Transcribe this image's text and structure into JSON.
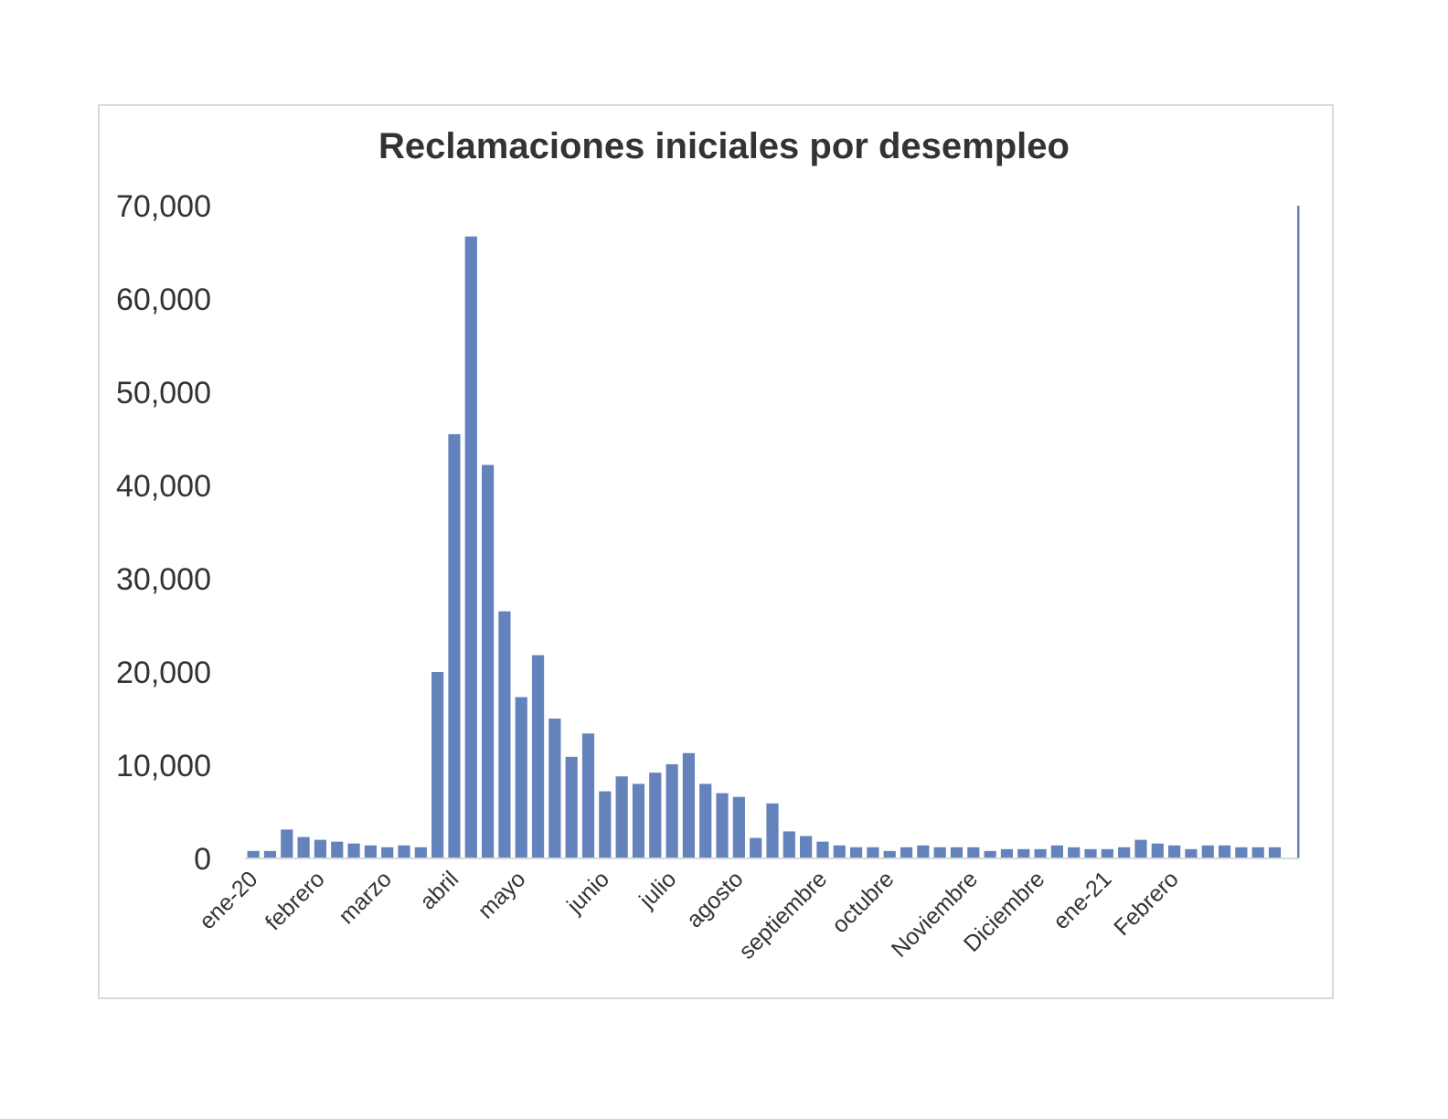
{
  "chart_data": {
    "type": "bar",
    "title": "Reclamaciones iniciales por desempleo",
    "xlabel": "",
    "ylabel": "",
    "ylim": [
      0,
      70000
    ],
    "yticks": [
      0,
      10000,
      20000,
      30000,
      40000,
      50000,
      60000,
      70000
    ],
    "ytick_labels": [
      "0",
      "10,000",
      "20,000",
      "30,000",
      "40,000",
      "50,000",
      "60,000",
      "70,000"
    ],
    "color": "#6482bc",
    "grid": false,
    "legend": "none",
    "x_labels": [
      {
        "index": 0,
        "text": "ene-20"
      },
      {
        "index": 4,
        "text": "febrero"
      },
      {
        "index": 8,
        "text": "marzo"
      },
      {
        "index": 12,
        "text": "abril"
      },
      {
        "index": 16,
        "text": "mayo"
      },
      {
        "index": 21,
        "text": "junio"
      },
      {
        "index": 25,
        "text": "julio"
      },
      {
        "index": 29,
        "text": "agosto"
      },
      {
        "index": 34,
        "text": "septiembre"
      },
      {
        "index": 38,
        "text": "octubre"
      },
      {
        "index": 43,
        "text": "Noviembre"
      },
      {
        "index": 47,
        "text": "Diciembre"
      },
      {
        "index": 51,
        "text": "ene-21"
      },
      {
        "index": 55,
        "text": "Febrero"
      }
    ],
    "values": [
      800,
      800,
      3100,
      2300,
      2000,
      1800,
      1600,
      1400,
      1200,
      1400,
      1200,
      20000,
      45500,
      66700,
      42200,
      26500,
      17300,
      21800,
      15000,
      10900,
      13400,
      7200,
      8800,
      8000,
      9200,
      10100,
      11300,
      8000,
      7000,
      6600,
      2200,
      5900,
      2900,
      2400,
      1800,
      1400,
      1200,
      1200,
      800,
      1200,
      1400,
      1200,
      1200,
      1200,
      800,
      1000,
      1000,
      1000,
      1400,
      1200,
      1000,
      1000,
      1200,
      2000,
      1600,
      1400,
      1000,
      1400,
      1400,
      1200,
      1200,
      1200,
      70000
    ]
  }
}
